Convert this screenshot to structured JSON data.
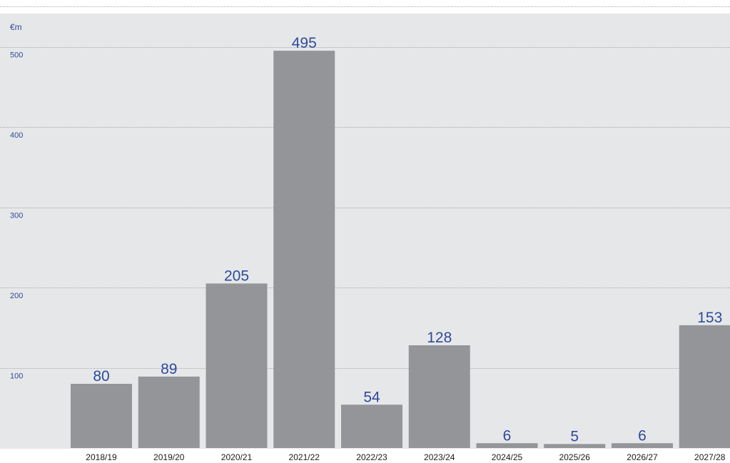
{
  "chart_data": {
    "type": "bar",
    "unit_label": "€m",
    "categories": [
      "2018/19",
      "2019/20",
      "2020/21",
      "2021/22",
      "2022/23",
      "2023/24",
      "2024/25",
      "2025/26",
      "2026/27",
      "2027/28"
    ],
    "values": [
      80,
      89,
      205,
      495,
      54,
      128,
      6,
      5,
      6,
      153
    ],
    "value_labels": [
      "80",
      "89",
      "205",
      "495",
      "54",
      "128",
      "6",
      "5",
      "6",
      "153"
    ],
    "y_ticks": [
      100,
      200,
      300,
      400,
      500
    ],
    "y_tick_labels": [
      "100",
      "200",
      "300",
      "400",
      "500"
    ],
    "ylim": [
      0,
      500
    ],
    "grid": true,
    "colors": {
      "background": "#e6e7e8",
      "bar": "#939598",
      "gridline": "#a7a9ac",
      "label_text": "#2e4b9b",
      "category_text": "#1a1a1a"
    }
  }
}
